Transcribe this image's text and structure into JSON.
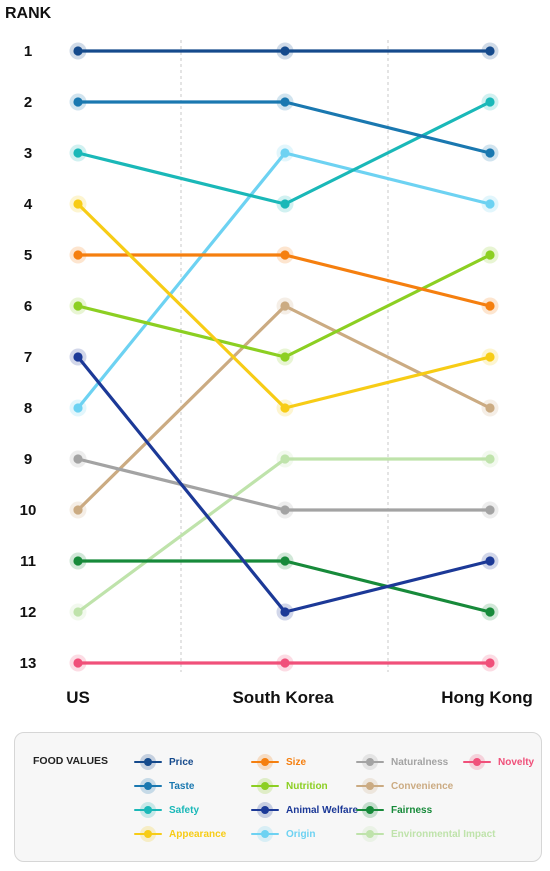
{
  "chart_data": {
    "type": "line",
    "subtype": "bump",
    "ylabel": "RANK",
    "categories": [
      "US",
      "South Korea",
      "Hong Kong"
    ],
    "ranks": [
      1,
      2,
      3,
      4,
      5,
      6,
      7,
      8,
      9,
      10,
      11,
      12,
      13
    ],
    "y_inverted": true,
    "legend_title": "FOOD VALUES",
    "legend_position": "bottom",
    "grid": "vertical dashed",
    "series": [
      {
        "name": "Price",
        "color": "#154a8c",
        "values": [
          1,
          1,
          1
        ]
      },
      {
        "name": "Taste",
        "color": "#1a78b0",
        "values": [
          2,
          2,
          3
        ]
      },
      {
        "name": "Safety",
        "color": "#1ab8b8",
        "values": [
          3,
          4,
          2
        ]
      },
      {
        "name": "Appearance",
        "color": "#f7cc16",
        "values": [
          4,
          8,
          7
        ]
      },
      {
        "name": "Size",
        "color": "#f57f0f",
        "values": [
          5,
          5,
          6
        ]
      },
      {
        "name": "Nutrition",
        "color": "#8ccf22",
        "values": [
          6,
          7,
          5
        ]
      },
      {
        "name": "Animal Welfare",
        "color": "#1c3997",
        "values": [
          7,
          12,
          11
        ]
      },
      {
        "name": "Origin",
        "color": "#6dd2f2",
        "values": [
          8,
          3,
          4
        ]
      },
      {
        "name": "Naturalness",
        "color": "#a3a3a3",
        "values": [
          9,
          10,
          10
        ]
      },
      {
        "name": "Convenience",
        "color": "#cbab82",
        "values": [
          10,
          6,
          8
        ]
      },
      {
        "name": "Fairness",
        "color": "#178a3a",
        "values": [
          11,
          11,
          12
        ]
      },
      {
        "name": "Environmental Impact",
        "color": "#bfe3ab",
        "values": [
          12,
          9,
          9
        ]
      },
      {
        "name": "Novelty",
        "color": "#f0507a",
        "values": [
          13,
          13,
          13
        ]
      }
    ]
  }
}
